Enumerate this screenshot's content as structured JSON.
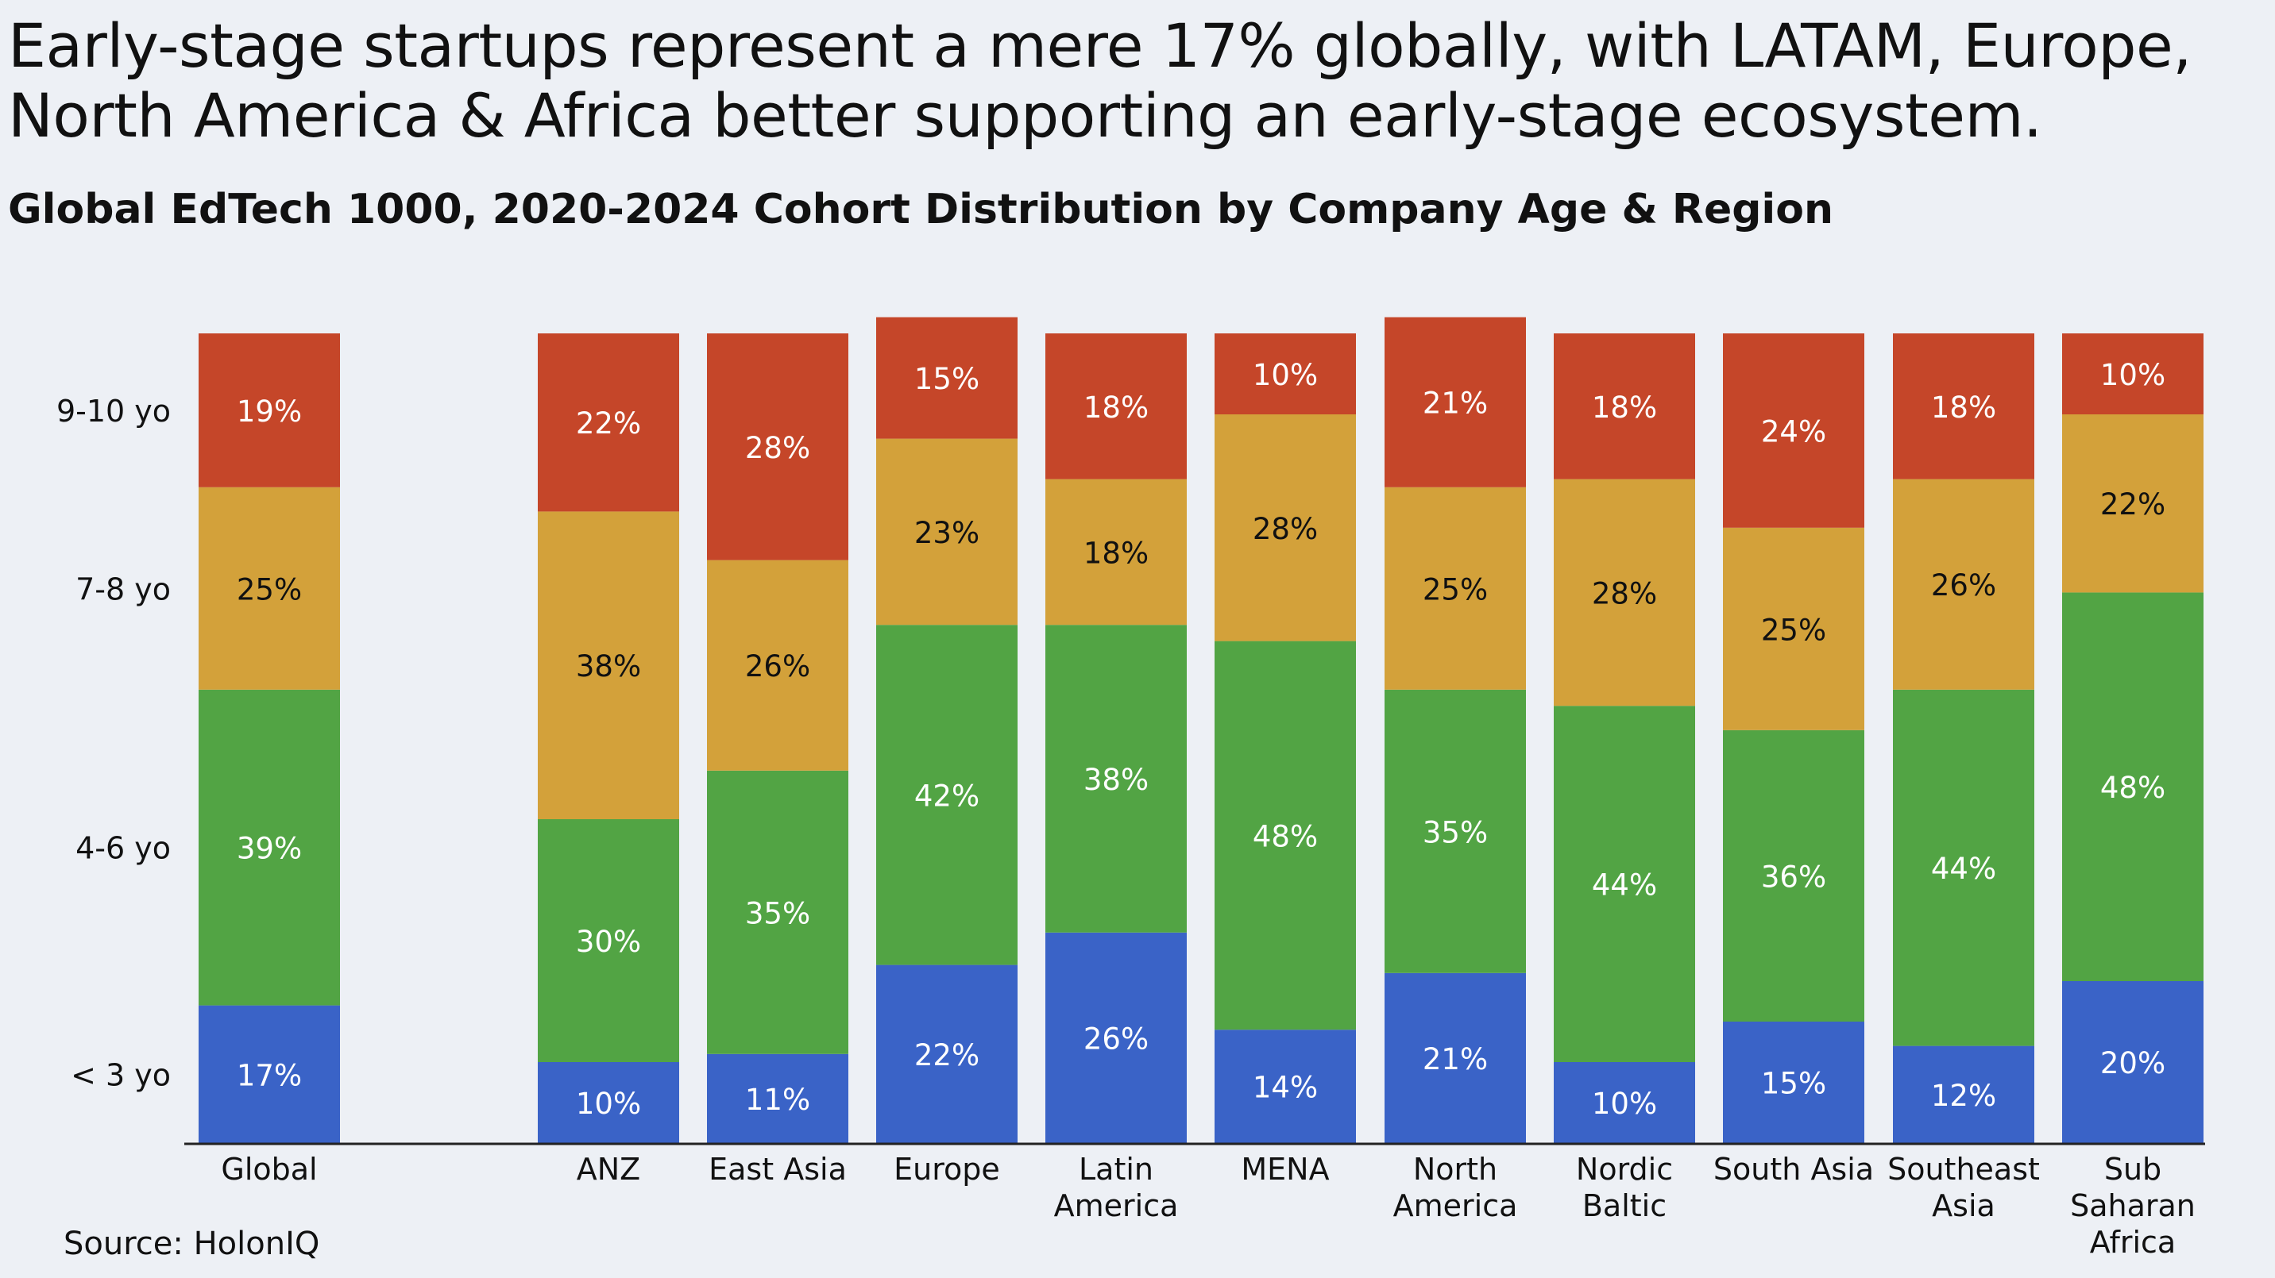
{
  "title": "Early-stage startups represent a mere 17% globally, with LATAM, Europe, North America & Africa better supporting an early-stage ecosystem.",
  "subtitle": "Global EdTech 1000, 2020-2024 Cohort Distribution by Company Age & Region",
  "source": "Source: HolonIQ",
  "colors": {
    "lt3": "#3a63c7",
    "y4_6": "#52a444",
    "y7_8": "#d3a13a",
    "y9_10": "#c54629",
    "background": "#edf0f5"
  },
  "chart_data": {
    "type": "bar",
    "stacked": true,
    "normalized_percent": true,
    "categories": [
      [
        "Global"
      ],
      [
        "ANZ"
      ],
      [
        "East Asia"
      ],
      [
        "Europe"
      ],
      [
        "Latin",
        "America"
      ],
      [
        "MENA"
      ],
      [
        "North",
        "America"
      ],
      [
        "Nordic",
        "Baltic"
      ],
      [
        "South Asia"
      ],
      [
        "Southeast",
        "Asia"
      ],
      [
        "Sub",
        "Saharan",
        "Africa"
      ]
    ],
    "series": [
      {
        "name": "< 3 yo",
        "color_key": "lt3",
        "label_color": "#ffffff",
        "values": [
          17,
          10,
          11,
          22,
          26,
          14,
          21,
          10,
          15,
          12,
          20
        ]
      },
      {
        "name": "4-6 yo",
        "color_key": "y4_6",
        "label_color": "#ffffff",
        "values": [
          39,
          30,
          35,
          42,
          38,
          48,
          35,
          44,
          36,
          44,
          48
        ]
      },
      {
        "name": "7-8 yo",
        "color_key": "y7_8",
        "label_color": "#111111",
        "values": [
          25,
          38,
          26,
          23,
          18,
          28,
          25,
          28,
          25,
          26,
          22
        ]
      },
      {
        "name": "9-10 yo",
        "color_key": "y9_10",
        "label_color": "#ffffff",
        "values": [
          19,
          22,
          28,
          15,
          18,
          10,
          21,
          18,
          24,
          18,
          10
        ]
      }
    ],
    "ylim": [
      0,
      100
    ],
    "ylabel": "",
    "xlabel": "",
    "legend": "left-axis",
    "grid": false
  }
}
